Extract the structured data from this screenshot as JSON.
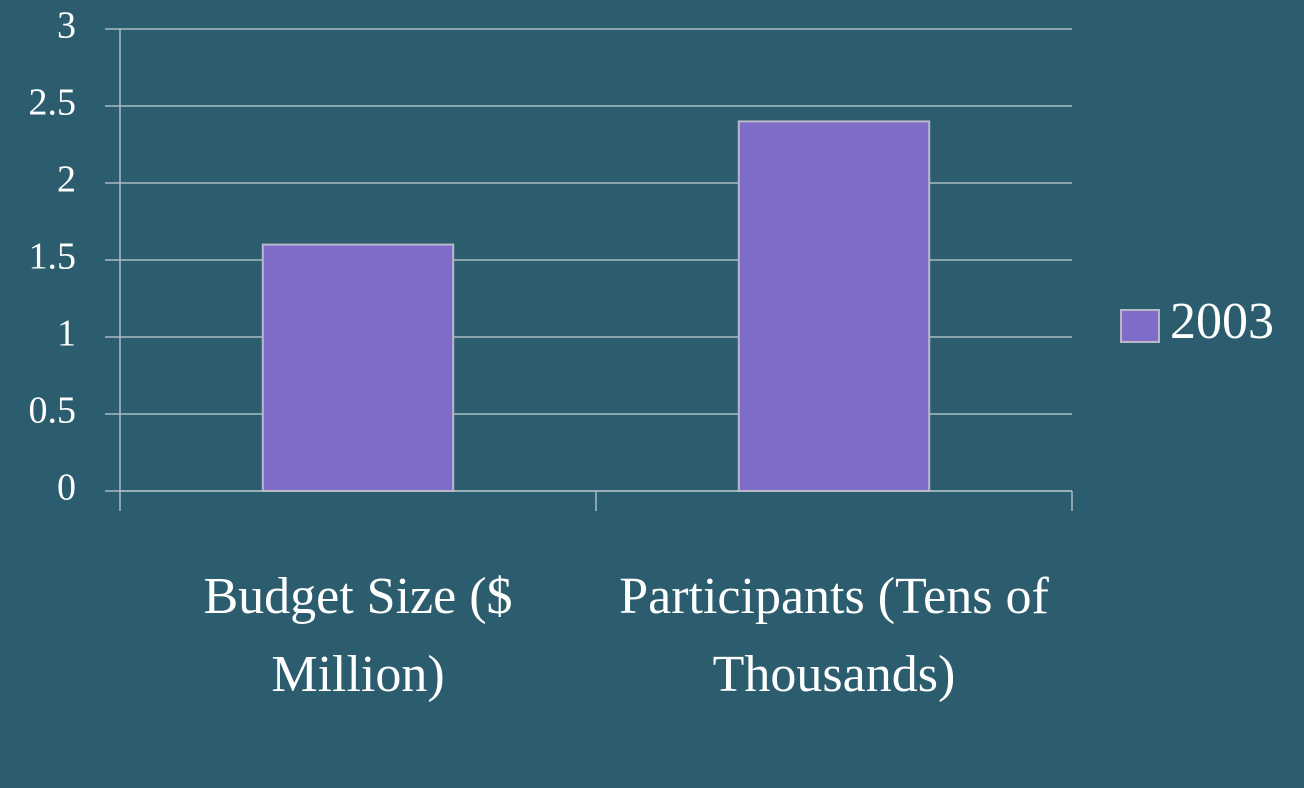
{
  "chart_data": {
    "type": "bar",
    "categories": [
      "Budget Size ($ Million)",
      "Participants (Tens of Thousands)"
    ],
    "series": [
      {
        "name": "2003",
        "color": "#7f6bc8",
        "values": [
          1.6,
          2.4
        ]
      }
    ],
    "ylim": [
      0,
      3
    ],
    "yticks": [
      0,
      0.5,
      1,
      1.5,
      2,
      2.5,
      3
    ],
    "grid": true,
    "legend": "right"
  }
}
